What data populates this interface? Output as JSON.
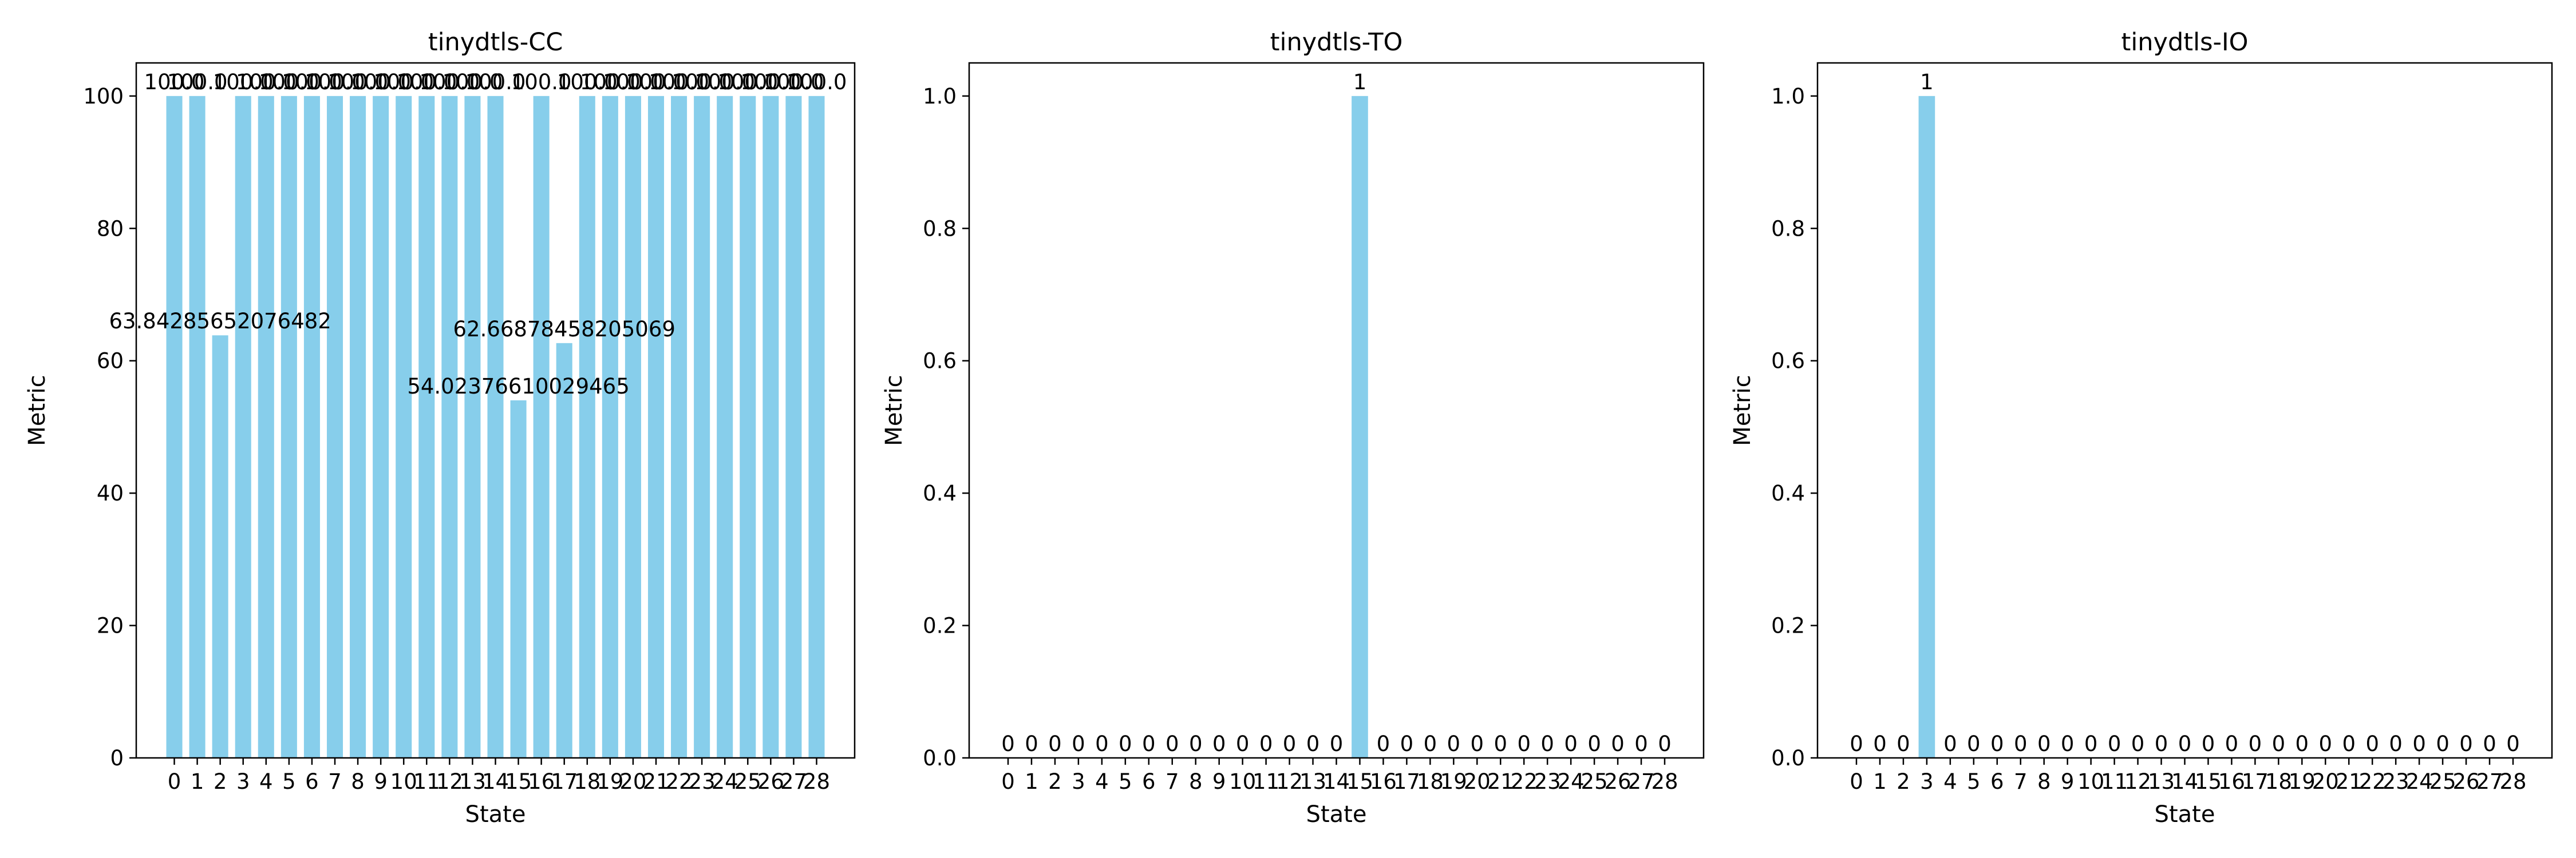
{
  "chart_data": [
    {
      "type": "bar",
      "title": "tinydtls-CC",
      "xlabel": "State",
      "ylabel": "Metric",
      "ylim": [
        0,
        105
      ],
      "yticks": [
        0,
        20,
        40,
        60,
        80,
        100
      ],
      "ytick_labels": [
        "0",
        "20",
        "40",
        "60",
        "80",
        "100"
      ],
      "categories": [
        "0",
        "1",
        "2",
        "3",
        "4",
        "5",
        "6",
        "7",
        "8",
        "9",
        "10",
        "11",
        "12",
        "13",
        "14",
        "15",
        "16",
        "17",
        "18",
        "19",
        "20",
        "21",
        "22",
        "23",
        "24",
        "25",
        "26",
        "27",
        "28"
      ],
      "values": [
        100,
        100,
        63.84285652076482,
        100,
        100,
        100,
        100,
        100,
        100,
        100,
        100,
        100,
        100,
        100,
        100,
        54.02376610029465,
        100,
        62.66878458205069,
        100,
        100,
        100,
        100,
        100,
        100,
        100,
        100,
        100,
        100,
        100
      ],
      "data_labels": [
        "100.0",
        "100.0",
        "63.84285652076482",
        "100.0",
        "100.0",
        "100.0",
        "100.0",
        "100.0",
        "100.0",
        "100.0",
        "100.0",
        "100.0",
        "100.0",
        "100.0",
        "100.0",
        "54.02376610029465",
        "100.0",
        "62.66878458205069",
        "100.0",
        "100.0",
        "100.0",
        "100.0",
        "100.0",
        "100.0",
        "100.0",
        "100.0",
        "100.0",
        "100.0",
        "100.0"
      ],
      "bar_color": "#87ceeb",
      "grid": false
    },
    {
      "type": "bar",
      "title": "tinydtls-TO",
      "xlabel": "State",
      "ylabel": "Metric",
      "ylim": [
        0,
        1.05
      ],
      "yticks": [
        0,
        0.2,
        0.4,
        0.6,
        0.8,
        1.0
      ],
      "ytick_labels": [
        "0.0",
        "0.2",
        "0.4",
        "0.6",
        "0.8",
        "1.0"
      ],
      "categories": [
        "0",
        "1",
        "2",
        "3",
        "4",
        "5",
        "6",
        "7",
        "8",
        "9",
        "10",
        "11",
        "12",
        "13",
        "14",
        "15",
        "16",
        "17",
        "18",
        "19",
        "20",
        "21",
        "22",
        "23",
        "24",
        "25",
        "26",
        "27",
        "28"
      ],
      "values": [
        0,
        0,
        0,
        0,
        0,
        0,
        0,
        0,
        0,
        0,
        0,
        0,
        0,
        0,
        0,
        1,
        0,
        0,
        0,
        0,
        0,
        0,
        0,
        0,
        0,
        0,
        0,
        0,
        0
      ],
      "data_labels": [
        "0",
        "0",
        "0",
        "0",
        "0",
        "0",
        "0",
        "0",
        "0",
        "0",
        "0",
        "0",
        "0",
        "0",
        "0",
        "1",
        "0",
        "0",
        "0",
        "0",
        "0",
        "0",
        "0",
        "0",
        "0",
        "0",
        "0",
        "0",
        "0"
      ],
      "bar_color": "#87ceeb",
      "grid": false
    },
    {
      "type": "bar",
      "title": "tinydtls-IO",
      "xlabel": "State",
      "ylabel": "Metric",
      "ylim": [
        0,
        1.05
      ],
      "yticks": [
        0,
        0.2,
        0.4,
        0.6,
        0.8,
        1.0
      ],
      "ytick_labels": [
        "0.0",
        "0.2",
        "0.4",
        "0.6",
        "0.8",
        "1.0"
      ],
      "categories": [
        "0",
        "1",
        "2",
        "3",
        "4",
        "5",
        "6",
        "7",
        "8",
        "9",
        "10",
        "11",
        "12",
        "13",
        "14",
        "15",
        "16",
        "17",
        "18",
        "19",
        "20",
        "21",
        "22",
        "23",
        "24",
        "25",
        "26",
        "27",
        "28"
      ],
      "values": [
        0,
        0,
        0,
        1,
        0,
        0,
        0,
        0,
        0,
        0,
        0,
        0,
        0,
        0,
        0,
        0,
        0,
        0,
        0,
        0,
        0,
        0,
        0,
        0,
        0,
        0,
        0,
        0,
        0
      ],
      "data_labels": [
        "0",
        "0",
        "0",
        "1",
        "0",
        "0",
        "0",
        "0",
        "0",
        "0",
        "0",
        "0",
        "0",
        "0",
        "0",
        "0",
        "0",
        "0",
        "0",
        "0",
        "0",
        "0",
        "0",
        "0",
        "0",
        "0",
        "0",
        "0",
        "0"
      ],
      "bar_color": "#87ceeb",
      "grid": false
    }
  ]
}
